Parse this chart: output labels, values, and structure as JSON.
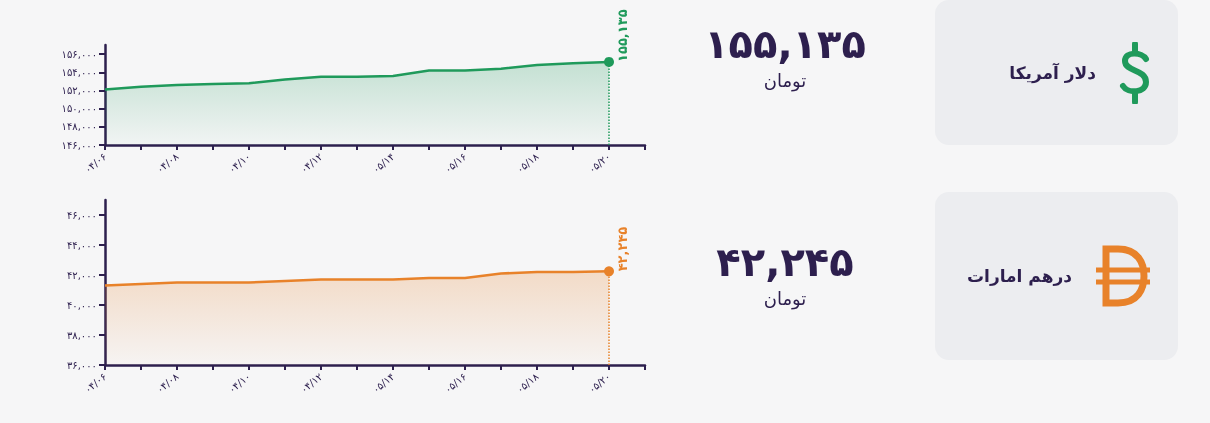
{
  "chart_data": [
    {
      "type": "area",
      "annotations": [
        "۱۵۵,۱۳۵",
        "تومان",
        "دلار آمریکا"
      ],
      "color": "#1f9a5b",
      "categories": [
        "۰۴/۰۶",
        null,
        "۰۴/۰۸",
        null,
        "۰۴/۱۰",
        null,
        "۰۴/۱۲",
        null,
        "۰۵/۱۴",
        null,
        "۰۵/۱۶",
        null,
        "۰۵/۱۸",
        null,
        "۰۵/۲۰",
        null
      ],
      "values": [
        152100,
        152400,
        152600,
        152700,
        152800,
        153200,
        153500,
        153500,
        153600,
        154200,
        154200,
        154400,
        154800,
        155000,
        155135,
        null
      ],
      "value_labels": [
        null,
        null,
        null,
        null,
        null,
        null,
        null,
        null,
        null,
        null,
        null,
        null,
        null,
        null,
        "۱۵۵,۱۳۵",
        null
      ],
      "ylim": [
        146000,
        157000
      ],
      "yticks": [
        {
          "value": 146000,
          "label": "۱۴۶,۰۰۰"
        },
        {
          "value": 148000,
          "label": "۱۴۸,۰۰۰"
        },
        {
          "value": 150000,
          "label": "۱۵۰,۰۰۰"
        },
        {
          "value": 152000,
          "label": "۱۵۲,۰۰۰"
        },
        {
          "value": 154000,
          "label": "۱۵۴,۰۰۰"
        },
        {
          "value": 156000,
          "label": "۱۵۶,۰۰۰"
        }
      ]
    },
    {
      "type": "area",
      "annotations": [
        "۴۲,۲۴۵",
        "تومان",
        "درهم امارات"
      ],
      "color": "#e8822a",
      "categories": [
        "۰۴/۰۶",
        null,
        "۰۴/۰۸",
        null,
        "۰۴/۱۰",
        null,
        "۰۴/۱۲",
        null,
        "۰۵/۱۴",
        null,
        "۰۵/۱۶",
        null,
        "۰۵/۱۸",
        null,
        "۰۵/۲۰",
        null
      ],
      "values": [
        41300,
        41400,
        41500,
        41500,
        41500,
        41600,
        41700,
        41700,
        41700,
        41800,
        41800,
        42100,
        42200,
        42200,
        42245,
        null
      ],
      "value_labels": [
        null,
        null,
        null,
        null,
        null,
        null,
        null,
        null,
        null,
        null,
        null,
        null,
        null,
        null,
        "۴۲,۲۴۵",
        null
      ],
      "ylim": [
        36000,
        47000
      ],
      "yticks": [
        {
          "value": 36000,
          "label": "۳۶,۰۰۰"
        },
        {
          "value": 38000,
          "label": "۳۸,۰۰۰"
        },
        {
          "value": 40000,
          "label": "۴۰,۰۰۰"
        },
        {
          "value": 42000,
          "label": "۴۲,۰۰۰"
        },
        {
          "value": 44000,
          "label": "۴۴,۰۰۰"
        },
        {
          "value": 46000,
          "label": "۴۶,۰۰۰"
        }
      ]
    }
  ]
}
